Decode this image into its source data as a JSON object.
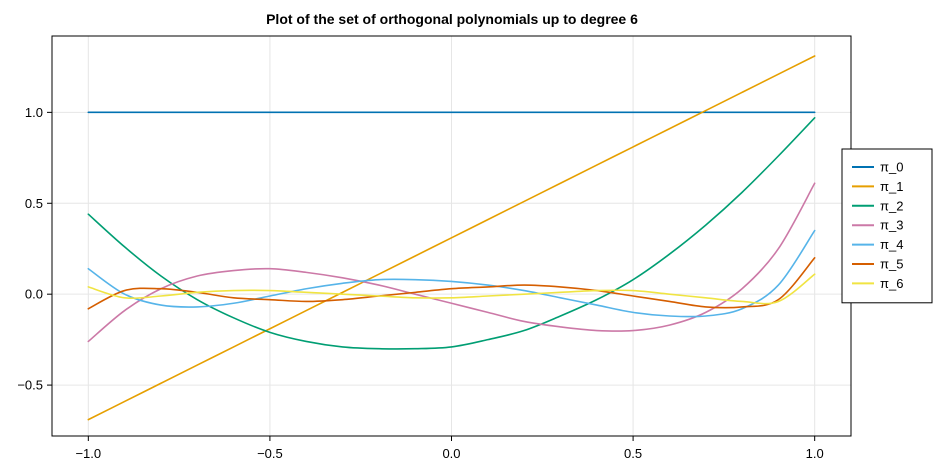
{
  "chart_data": {
    "type": "line",
    "title": "Plot of the set of orthogonal polynomials up to degree 6",
    "xlabel": "",
    "ylabel": "",
    "xlim": [
      -1.1,
      1.1
    ],
    "ylim": [
      -0.78,
      1.42
    ],
    "x_ticks": [
      -1.0,
      -0.5,
      0.0,
      0.5,
      1.0
    ],
    "x_tick_labels": [
      "−1.0",
      "−0.5",
      "0.0",
      "0.5",
      "1.0"
    ],
    "y_ticks": [
      -0.5,
      0.0,
      0.5,
      1.0
    ],
    "y_tick_labels": [
      "−0.5",
      "0.0",
      "0.5",
      "1.0"
    ],
    "grid": true,
    "legend_position": "right",
    "x": [
      -1.0,
      -0.9,
      -0.8,
      -0.7,
      -0.6,
      -0.5,
      -0.4,
      -0.3,
      -0.2,
      -0.1,
      0.0,
      0.1,
      0.2,
      0.3,
      0.4,
      0.5,
      0.6,
      0.7,
      0.8,
      0.9,
      1.0
    ],
    "series": [
      {
        "name": "π_0",
        "color": "#0072b2",
        "values": [
          1.0,
          1.0,
          1.0,
          1.0,
          1.0,
          1.0,
          1.0,
          1.0,
          1.0,
          1.0,
          1.0,
          1.0,
          1.0,
          1.0,
          1.0,
          1.0,
          1.0,
          1.0,
          1.0,
          1.0,
          1.0
        ]
      },
      {
        "name": "π_1",
        "color": "#e69f00",
        "values": [
          -0.69,
          -0.59,
          -0.49,
          -0.39,
          -0.29,
          -0.19,
          -0.09,
          0.01,
          0.11,
          0.21,
          0.31,
          0.41,
          0.51,
          0.61,
          0.71,
          0.81,
          0.91,
          1.01,
          1.11,
          1.21,
          1.31
        ]
      },
      {
        "name": "π_2",
        "color": "#009e73",
        "values": [
          0.44,
          0.26,
          0.1,
          -0.03,
          -0.13,
          -0.21,
          -0.26,
          -0.29,
          -0.3,
          -0.3,
          -0.29,
          -0.25,
          -0.2,
          -0.12,
          -0.03,
          0.08,
          0.22,
          0.38,
          0.56,
          0.76,
          0.97
        ]
      },
      {
        "name": "π_3",
        "color": "#cc79a7",
        "values": [
          -0.26,
          -0.09,
          0.03,
          0.1,
          0.13,
          0.14,
          0.12,
          0.09,
          0.05,
          0.0,
          -0.05,
          -0.1,
          -0.15,
          -0.18,
          -0.2,
          -0.2,
          -0.17,
          -0.1,
          0.03,
          0.25,
          0.61
        ]
      },
      {
        "name": "π_4",
        "color": "#56b4e9",
        "values": [
          0.14,
          0.0,
          -0.06,
          -0.07,
          -0.05,
          -0.01,
          0.03,
          0.06,
          0.08,
          0.08,
          0.07,
          0.05,
          0.02,
          -0.02,
          -0.06,
          -0.1,
          -0.12,
          -0.12,
          -0.08,
          0.05,
          0.35
        ]
      },
      {
        "name": "π_5",
        "color": "#d55e00",
        "values": [
          -0.08,
          0.02,
          0.03,
          0.01,
          -0.02,
          -0.03,
          -0.04,
          -0.03,
          -0.01,
          0.01,
          0.03,
          0.04,
          0.05,
          0.04,
          0.02,
          -0.01,
          -0.04,
          -0.07,
          -0.07,
          -0.03,
          0.2
        ]
      },
      {
        "name": "π_6",
        "color": "#f0e442",
        "values": [
          0.04,
          -0.02,
          -0.01,
          0.01,
          0.02,
          0.02,
          0.01,
          0.0,
          -0.01,
          -0.02,
          -0.02,
          -0.01,
          0.0,
          0.01,
          0.02,
          0.02,
          0.0,
          -0.02,
          -0.04,
          -0.04,
          0.11
        ]
      }
    ]
  }
}
